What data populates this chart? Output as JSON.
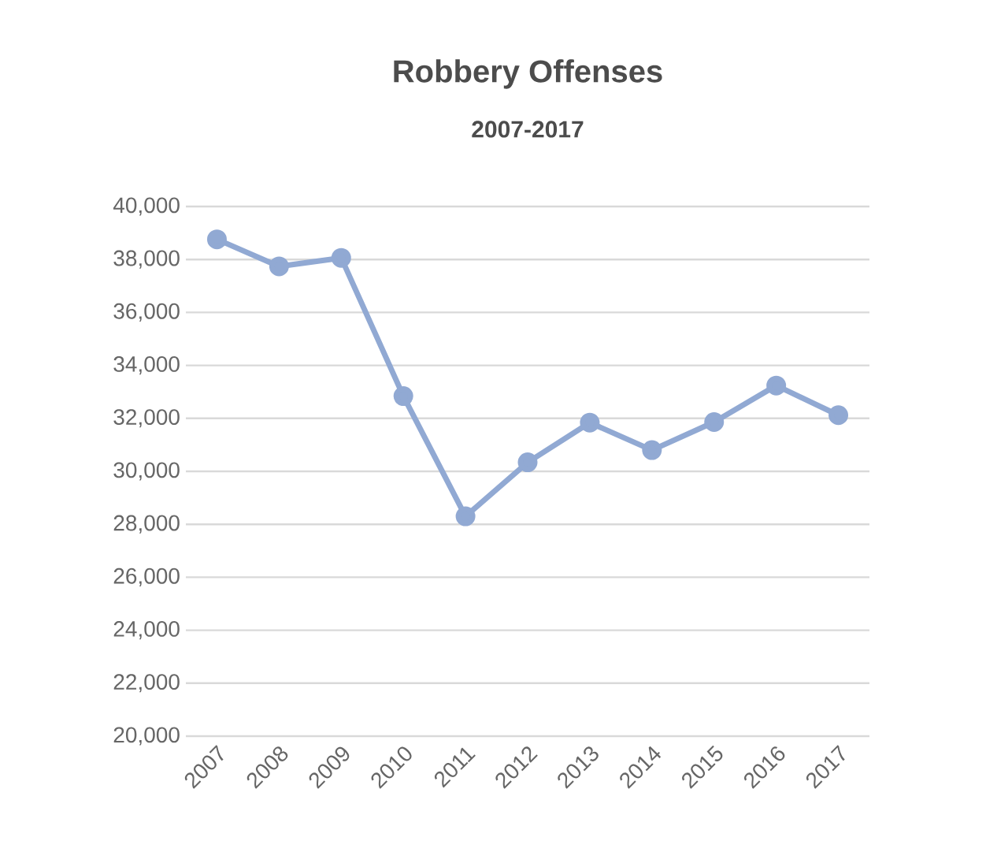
{
  "chart_data": {
    "type": "line",
    "title": "Robbery Offenses",
    "subtitle": "2007-2017",
    "categories": [
      "2007",
      "2008",
      "2009",
      "2010",
      "2011",
      "2012",
      "2013",
      "2014",
      "2015",
      "2016",
      "2017"
    ],
    "series": [
      {
        "color": "#91a9d3",
        "values": [
          38760,
          37740,
          38060,
          32840,
          28300,
          30340,
          31840,
          30800,
          31860,
          33240,
          32120
        ]
      }
    ],
    "ylim": [
      20000,
      40000
    ],
    "yticks": [
      {
        "value": 20000,
        "label": "20,000"
      },
      {
        "value": 22000,
        "label": "22,000"
      },
      {
        "value": 24000,
        "label": "24,000"
      },
      {
        "value": 26000,
        "label": "26,000"
      },
      {
        "value": 28000,
        "label": "28,000"
      },
      {
        "value": 30000,
        "label": "30,000"
      },
      {
        "value": 32000,
        "label": "32,000"
      },
      {
        "value": 34000,
        "label": "34,000"
      },
      {
        "value": 36000,
        "label": "36,000"
      },
      {
        "value": 38000,
        "label": "38,000"
      },
      {
        "value": 40000,
        "label": "40,000"
      }
    ],
    "grid": "y",
    "marker": "circle",
    "line_style": "solid"
  }
}
